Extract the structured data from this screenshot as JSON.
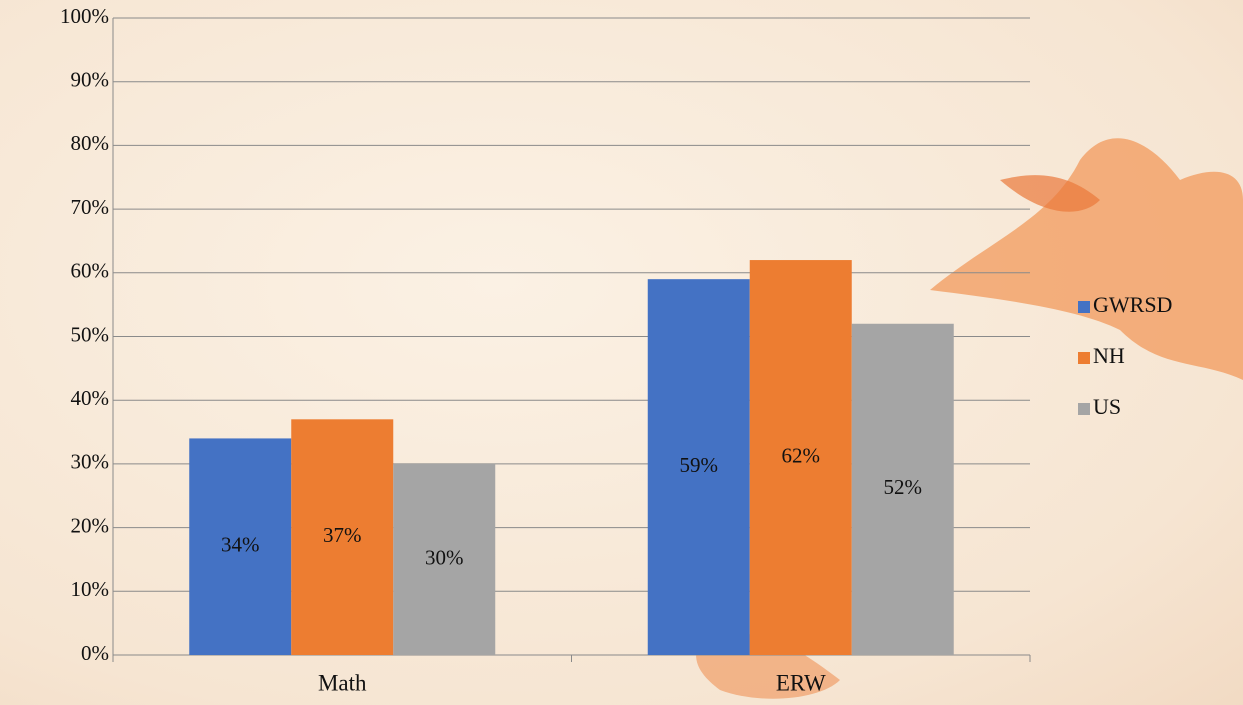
{
  "chart_data": {
    "type": "bar",
    "categories": [
      "Math",
      "ERW"
    ],
    "series": [
      {
        "name": "GWRSD",
        "color": "#4472c4",
        "values": [
          34,
          59
        ],
        "value_labels": [
          "34%",
          "59%"
        ]
      },
      {
        "name": "NH",
        "color": "#ed7d31",
        "values": [
          37,
          62
        ],
        "value_labels": [
          "37%",
          "62%"
        ]
      },
      {
        "name": "US",
        "color": "#a5a5a5",
        "values": [
          30,
          52
        ],
        "value_labels": [
          "30%",
          "52%"
        ]
      }
    ],
    "ylim": [
      0,
      100
    ],
    "yticks": [
      {
        "value": 0,
        "label": "0%"
      },
      {
        "value": 10,
        "label": "10%"
      },
      {
        "value": 20,
        "label": "20%"
      },
      {
        "value": 30,
        "label": "30%"
      },
      {
        "value": 40,
        "label": "40%"
      },
      {
        "value": 50,
        "label": "50%"
      },
      {
        "value": 60,
        "label": "60%"
      },
      {
        "value": 70,
        "label": "70%"
      },
      {
        "value": 80,
        "label": "80%"
      },
      {
        "value": 90,
        "label": "90%"
      },
      {
        "value": 100,
        "label": "100%"
      }
    ],
    "grid": true,
    "legend": "right"
  }
}
